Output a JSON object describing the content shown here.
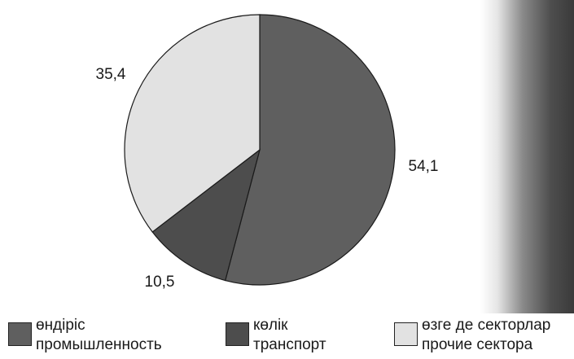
{
  "chart_data": {
    "type": "pie",
    "slices": [
      {
        "value": 54.1,
        "label": "54,1",
        "color": "#5f5f5f"
      },
      {
        "value": 10.5,
        "label": "10,5",
        "color": "#4d4d4d"
      },
      {
        "value": 35.4,
        "label": "35,4",
        "color": "#e2e2e2"
      }
    ],
    "start_angle_deg": 0,
    "direction": "clockwise",
    "legend_placement": "bottom",
    "legend": [
      {
        "line1": "өндіріс",
        "line2": "промышленность",
        "color": "#5f5f5f"
      },
      {
        "line1": "көлік",
        "line2": "транспорт",
        "color": "#4d4d4d"
      },
      {
        "line1": "өзге де секторлар",
        "line2": "прочие сектора",
        "color": "#e2e2e2"
      }
    ]
  },
  "photo": {
    "icon": "people-photo-icon"
  }
}
